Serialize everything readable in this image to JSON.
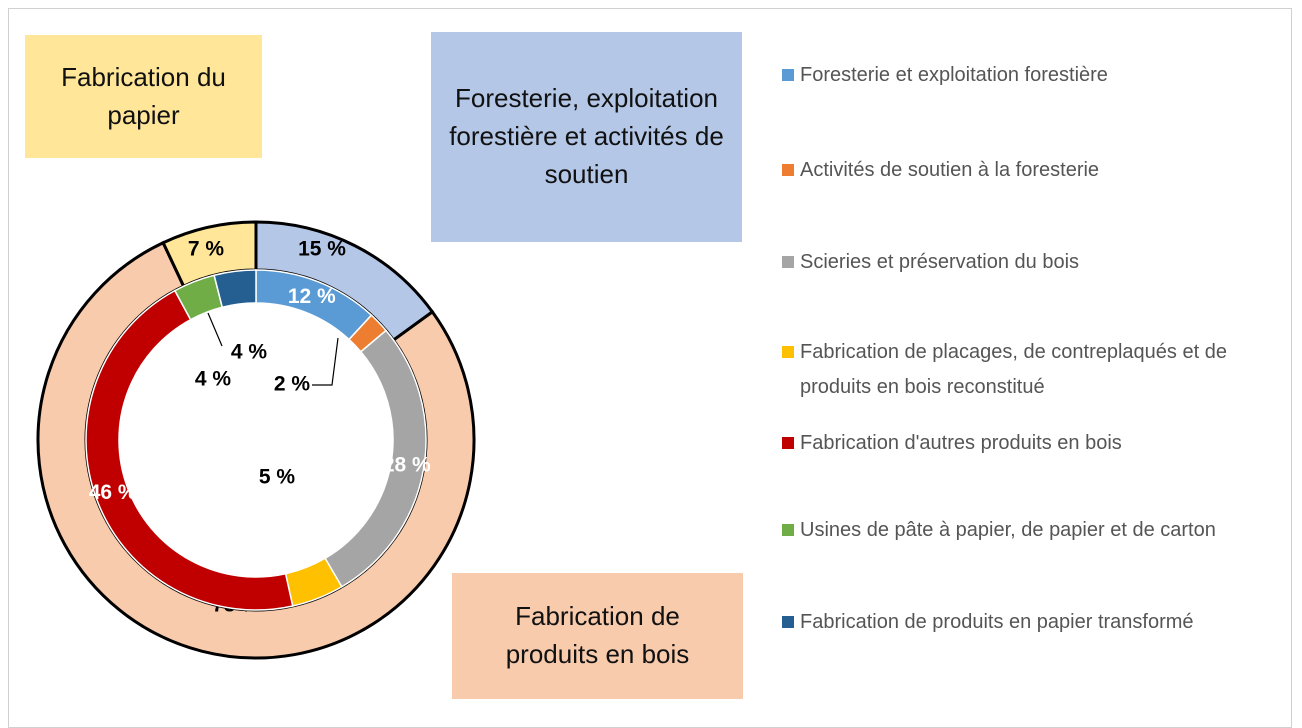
{
  "chart_data": {
    "type": "donut",
    "outer": {
      "categories": [
        "Foresterie, exploitation forestière et activités de soutien",
        "Fabrication de produits en bois",
        "Fabrication du papier"
      ],
      "values": [
        15,
        78,
        7
      ],
      "value_labels": [
        "15 %",
        "78 %",
        "7 %"
      ],
      "colors": [
        "#b4c7e7",
        "#f8cbad",
        "#ffe699"
      ]
    },
    "inner": {
      "categories": [
        "Foresterie et exploitation forestière",
        "Activités de soutien à la foresterie",
        "Scieries et préservation du bois",
        "Fabrication de placages, de contreplaqués et de produits en bois reconstitué",
        "Fabrication d'autres produits en bois",
        "Usines de pâte à papier, de papier et de carton",
        "Fabrication de produits en papier transformé"
      ],
      "values": [
        12,
        2,
        28,
        5,
        46,
        4,
        4
      ],
      "value_labels": [
        "12 %",
        "2 %",
        "28 %",
        "5 %",
        "46 %",
        "4 %",
        "4 %"
      ],
      "colors": [
        "#5b9bd5",
        "#ed7d31",
        "#a5a5a5",
        "#ffc000",
        "#c00000",
        "#70ad47",
        "#255e91"
      ]
    }
  }
}
